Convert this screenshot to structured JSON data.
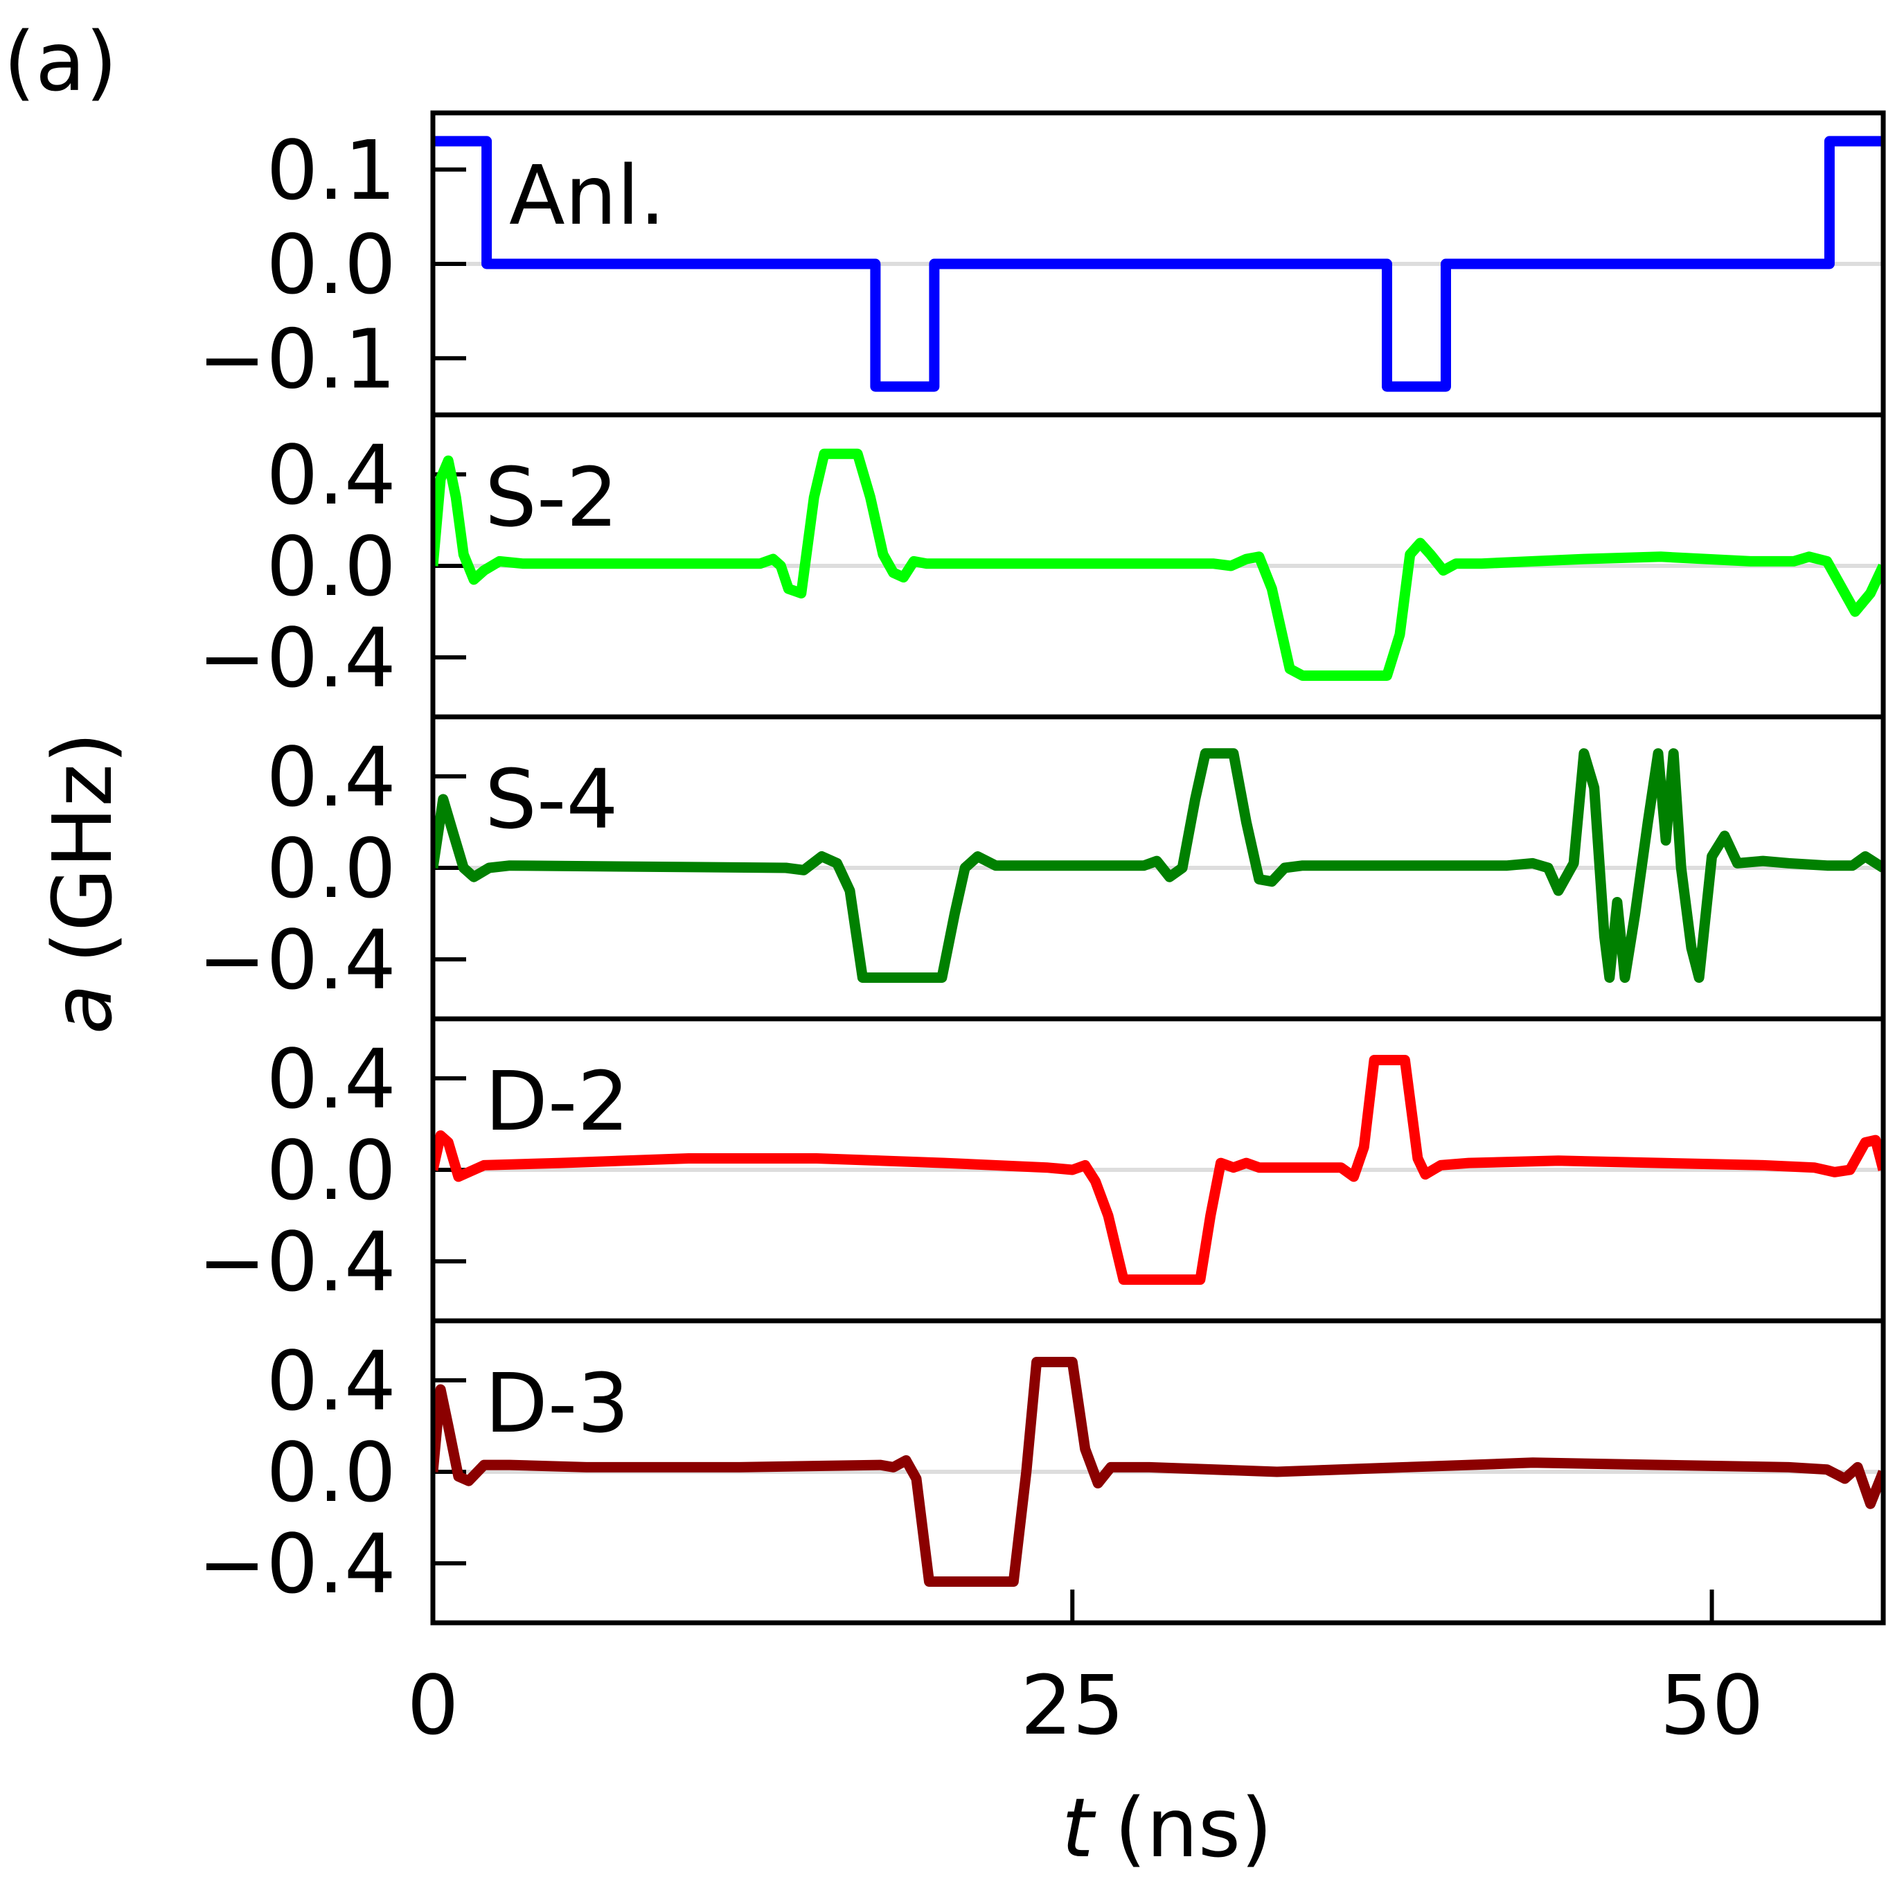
{
  "figure": {
    "corner_label": "(a)",
    "xlabel_var": "t",
    "xlabel_unit": "(ns)",
    "ylabel_var": "a",
    "ylabel_unit": "(GHz)"
  },
  "chart_data": {
    "type": "line",
    "x_ticks": [
      "0",
      "25",
      "50"
    ],
    "xlim": [
      0,
      56.7
    ],
    "grid": false,
    "zero_reference_line": true,
    "panels": [
      {
        "id": "anl",
        "label": "Anl.",
        "color": "#0000ff",
        "ylim": [
          -0.16,
          0.16
        ],
        "yticks": [
          0.1,
          0.0,
          -0.1
        ],
        "ytick_labels": [
          "0.1",
          "0.0",
          "−0.1"
        ],
        "points": [
          [
            0,
            0.13
          ],
          [
            2.1,
            0.13
          ],
          [
            2.1,
            0.0
          ],
          [
            17.3,
            0.0
          ],
          [
            17.3,
            -0.13
          ],
          [
            19.6,
            -0.13
          ],
          [
            19.6,
            0.0
          ],
          [
            37.3,
            0.0
          ],
          [
            37.3,
            -0.13
          ],
          [
            39.6,
            -0.13
          ],
          [
            39.6,
            0.0
          ],
          [
            54.6,
            0.0
          ],
          [
            54.6,
            0.13
          ],
          [
            56.7,
            0.13
          ]
        ]
      },
      {
        "id": "s2",
        "label": "S-2",
        "color": "#00ff00",
        "ylim": [
          -0.66,
          0.66
        ],
        "yticks": [
          0.4,
          0.0,
          -0.4
        ],
        "ytick_labels": [
          "0.4",
          "0.0",
          "−0.4"
        ],
        "points": [
          [
            0,
            0.0
          ],
          [
            0.3,
            0.38
          ],
          [
            0.6,
            0.46
          ],
          [
            0.9,
            0.3
          ],
          [
            1.2,
            0.05
          ],
          [
            1.6,
            -0.06
          ],
          [
            2.0,
            -0.02
          ],
          [
            2.6,
            0.02
          ],
          [
            3.5,
            0.01
          ],
          [
            12.8,
            0.01
          ],
          [
            13.3,
            0.03
          ],
          [
            13.6,
            0.0
          ],
          [
            13.9,
            -0.1
          ],
          [
            14.4,
            -0.12
          ],
          [
            14.9,
            0.3
          ],
          [
            15.3,
            0.49
          ],
          [
            16.6,
            0.49
          ],
          [
            17.1,
            0.3
          ],
          [
            17.6,
            0.05
          ],
          [
            18.0,
            -0.03
          ],
          [
            18.4,
            -0.05
          ],
          [
            18.8,
            0.02
          ],
          [
            19.3,
            0.01
          ],
          [
            30.5,
            0.01
          ],
          [
            31.2,
            0.0
          ],
          [
            31.8,
            0.03
          ],
          [
            32.3,
            0.04
          ],
          [
            32.8,
            -0.1
          ],
          [
            33.5,
            -0.45
          ],
          [
            34.0,
            -0.48
          ],
          [
            37.3,
            -0.48
          ],
          [
            37.8,
            -0.3
          ],
          [
            38.2,
            0.05
          ],
          [
            38.6,
            0.1
          ],
          [
            39.0,
            0.05
          ],
          [
            39.5,
            -0.02
          ],
          [
            40.0,
            0.01
          ],
          [
            41.0,
            0.01
          ],
          [
            45.0,
            0.03
          ],
          [
            48.0,
            0.04
          ],
          [
            51.5,
            0.02
          ],
          [
            53.2,
            0.02
          ],
          [
            53.8,
            0.04
          ],
          [
            54.5,
            0.02
          ],
          [
            55.0,
            -0.08
          ],
          [
            55.6,
            -0.2
          ],
          [
            56.2,
            -0.12
          ],
          [
            56.7,
            0.0
          ]
        ]
      },
      {
        "id": "s4",
        "label": "S-4",
        "color": "#008000",
        "ylim": [
          -0.66,
          0.66
        ],
        "yticks": [
          0.4,
          0.0,
          -0.4
        ],
        "ytick_labels": [
          "0.4",
          "0.0",
          "−0.4"
        ],
        "points": [
          [
            0,
            0.0
          ],
          [
            0.4,
            0.3
          ],
          [
            0.8,
            0.15
          ],
          [
            1.2,
            0.0
          ],
          [
            1.6,
            -0.04
          ],
          [
            2.2,
            0.0
          ],
          [
            3.0,
            0.01
          ],
          [
            13.8,
            0.0
          ],
          [
            14.5,
            -0.01
          ],
          [
            15.2,
            0.05
          ],
          [
            15.8,
            0.02
          ],
          [
            16.3,
            -0.1
          ],
          [
            16.8,
            -0.48
          ],
          [
            19.9,
            -0.48
          ],
          [
            20.4,
            -0.2
          ],
          [
            20.8,
            0.0
          ],
          [
            21.3,
            0.05
          ],
          [
            22.0,
            0.01
          ],
          [
            27.0,
            0.01
          ],
          [
            27.8,
            0.01
          ],
          [
            28.3,
            0.03
          ],
          [
            28.8,
            -0.04
          ],
          [
            29.3,
            0.0
          ],
          [
            29.8,
            0.3
          ],
          [
            30.2,
            0.5
          ],
          [
            31.3,
            0.5
          ],
          [
            31.8,
            0.2
          ],
          [
            32.3,
            -0.05
          ],
          [
            32.8,
            -0.06
          ],
          [
            33.3,
            0.0
          ],
          [
            34.0,
            0.01
          ],
          [
            42.0,
            0.01
          ],
          [
            43.0,
            0.02
          ],
          [
            43.6,
            0.0
          ],
          [
            44.0,
            -0.1
          ],
          [
            44.6,
            0.02
          ],
          [
            45.0,
            0.5
          ],
          [
            45.4,
            0.35
          ],
          [
            45.8,
            -0.3
          ],
          [
            46.0,
            -0.48
          ],
          [
            46.3,
            -0.15
          ],
          [
            46.6,
            -0.48
          ],
          [
            47.0,
            -0.2
          ],
          [
            47.5,
            0.2
          ],
          [
            47.9,
            0.5
          ],
          [
            48.2,
            0.12
          ],
          [
            48.5,
            0.5
          ],
          [
            48.8,
            0.0
          ],
          [
            49.2,
            -0.35
          ],
          [
            49.5,
            -0.48
          ],
          [
            50.0,
            0.05
          ],
          [
            50.5,
            0.14
          ],
          [
            51.0,
            0.02
          ],
          [
            52.0,
            0.03
          ],
          [
            53.0,
            0.02
          ],
          [
            54.5,
            0.01
          ],
          [
            55.5,
            0.01
          ],
          [
            56.0,
            0.05
          ],
          [
            56.7,
            0.0
          ]
        ]
      },
      {
        "id": "d2",
        "label": "D-2",
        "color": "#ff0000",
        "ylim": [
          -0.66,
          0.66
        ],
        "yticks": [
          0.4,
          0.0,
          -0.4
        ],
        "ytick_labels": [
          "0.4",
          "0.0",
          "−0.4"
        ],
        "points": [
          [
            0,
            0.0
          ],
          [
            0.3,
            0.15
          ],
          [
            0.6,
            0.12
          ],
          [
            1.0,
            -0.03
          ],
          [
            1.4,
            -0.01
          ],
          [
            2.0,
            0.02
          ],
          [
            5.0,
            0.03
          ],
          [
            10.0,
            0.05
          ],
          [
            15.0,
            0.05
          ],
          [
            20.0,
            0.03
          ],
          [
            24.0,
            0.01
          ],
          [
            25.0,
            0.0
          ],
          [
            25.5,
            0.02
          ],
          [
            25.9,
            -0.05
          ],
          [
            26.4,
            -0.2
          ],
          [
            27.0,
            -0.48
          ],
          [
            30.0,
            -0.48
          ],
          [
            30.4,
            -0.2
          ],
          [
            30.8,
            0.03
          ],
          [
            31.3,
            0.01
          ],
          [
            31.8,
            0.03
          ],
          [
            32.3,
            0.01
          ],
          [
            35.0,
            0.01
          ],
          [
            35.5,
            0.01
          ],
          [
            36.0,
            -0.03
          ],
          [
            36.4,
            0.1
          ],
          [
            36.8,
            0.48
          ],
          [
            38.0,
            0.48
          ],
          [
            38.5,
            0.05
          ],
          [
            38.8,
            -0.02
          ],
          [
            39.4,
            0.02
          ],
          [
            40.5,
            0.03
          ],
          [
            44.0,
            0.04
          ],
          [
            48.0,
            0.03
          ],
          [
            52.0,
            0.02
          ],
          [
            54.0,
            0.01
          ],
          [
            54.8,
            -0.01
          ],
          [
            55.4,
            0.0
          ],
          [
            56.0,
            0.12
          ],
          [
            56.4,
            0.13
          ],
          [
            56.7,
            0.0
          ]
        ]
      },
      {
        "id": "d3",
        "label": "D-3",
        "color": "#8b0000",
        "ylim": [
          -0.66,
          0.66
        ],
        "yticks": [
          0.4,
          0.0,
          -0.4
        ],
        "ytick_labels": [
          "0.4",
          "0.0",
          "−0.4"
        ],
        "points": [
          [
            0,
            0.0
          ],
          [
            0.3,
            0.36
          ],
          [
            0.6,
            0.2
          ],
          [
            1.0,
            -0.02
          ],
          [
            1.4,
            -0.04
          ],
          [
            2.0,
            0.03
          ],
          [
            3.0,
            0.03
          ],
          [
            6.0,
            0.02
          ],
          [
            12.0,
            0.02
          ],
          [
            17.5,
            0.03
          ],
          [
            18.0,
            0.02
          ],
          [
            18.5,
            0.05
          ],
          [
            18.9,
            -0.03
          ],
          [
            19.4,
            -0.48
          ],
          [
            22.7,
            -0.48
          ],
          [
            23.2,
            0.0
          ],
          [
            23.6,
            0.48
          ],
          [
            25.0,
            0.48
          ],
          [
            25.5,
            0.1
          ],
          [
            26.0,
            -0.05
          ],
          [
            26.5,
            0.02
          ],
          [
            28.0,
            0.02
          ],
          [
            33.0,
            0.0
          ],
          [
            38.0,
            0.02
          ],
          [
            43.0,
            0.04
          ],
          [
            48.0,
            0.03
          ],
          [
            53.0,
            0.02
          ],
          [
            54.5,
            0.01
          ],
          [
            55.2,
            -0.03
          ],
          [
            55.7,
            0.02
          ],
          [
            56.2,
            -0.14
          ],
          [
            56.7,
            0.0
          ]
        ]
      }
    ]
  }
}
